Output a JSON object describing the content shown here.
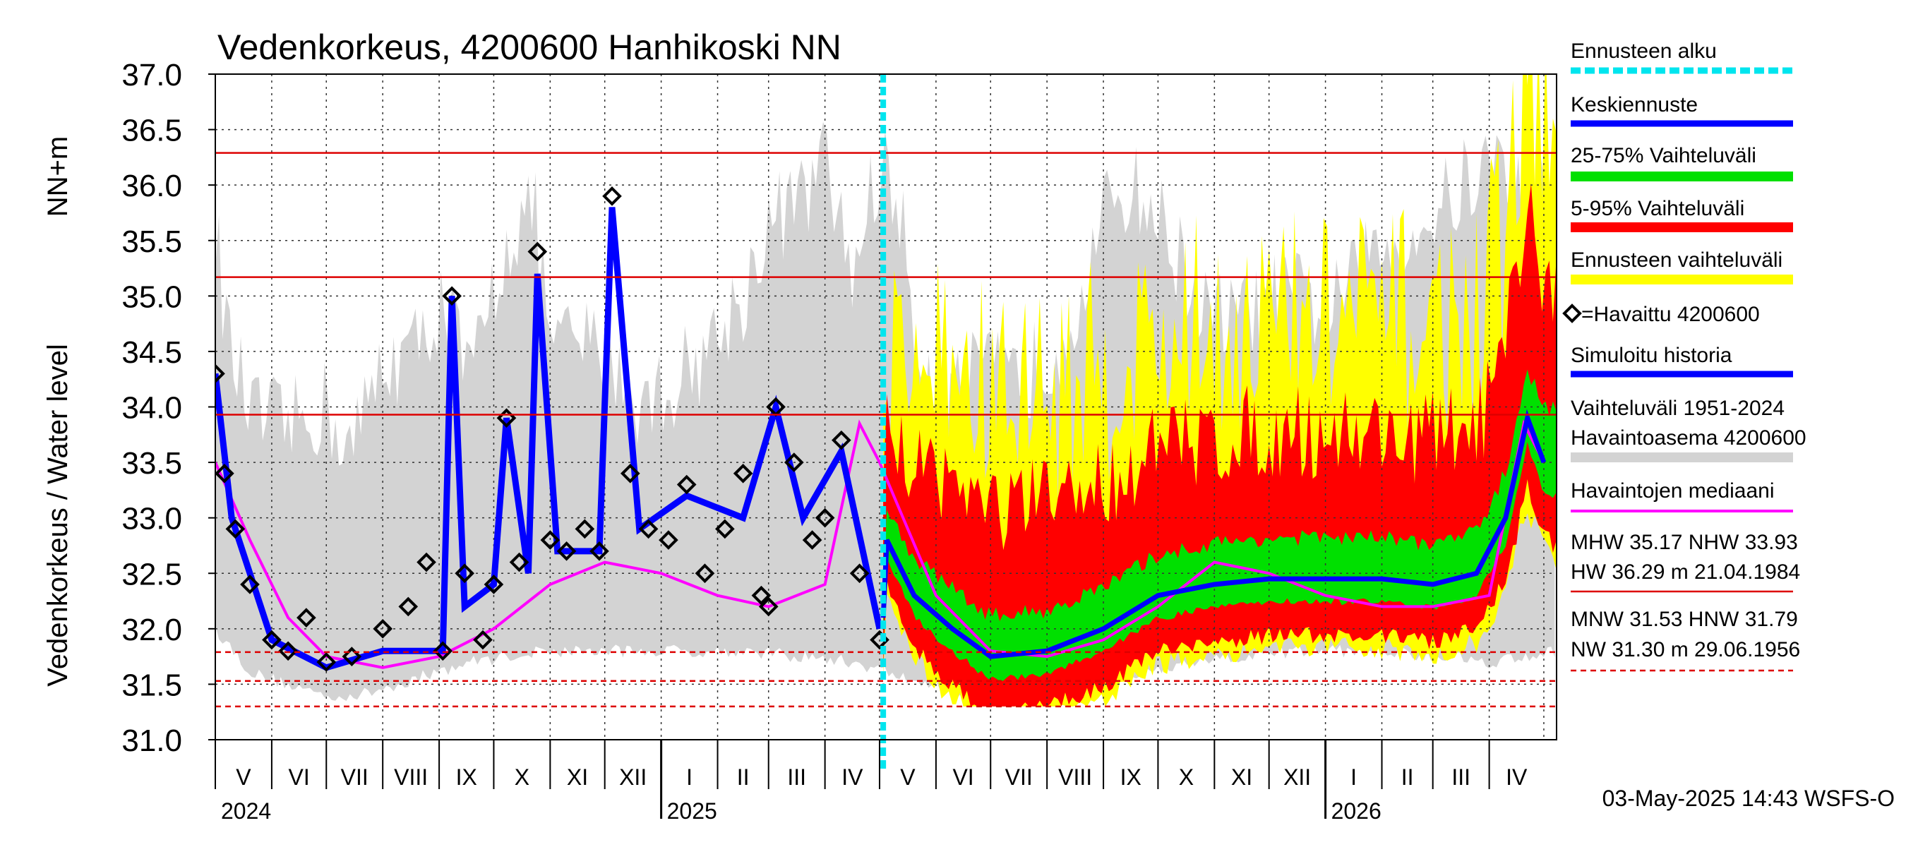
{
  "chart_data": {
    "type": "area",
    "title": "Vedenkorkeus, 4200600 Hanhikoski NN",
    "ylabel_left": "Vedenkorkeus / Water level",
    "ylabel_right": "NN+m",
    "ylim": [
      31.0,
      37.0
    ],
    "yticks": [
      "31.0",
      "31.5",
      "32.0",
      "32.5",
      "33.0",
      "33.5",
      "34.0",
      "34.5",
      "35.0",
      "35.5",
      "36.0",
      "36.5",
      "37.0"
    ],
    "grid": true,
    "months": [
      "V",
      "VI",
      "VII",
      "VIII",
      "IX",
      "X",
      "XI",
      "XII",
      "I",
      "II",
      "III",
      "IV",
      "V",
      "VI",
      "VII",
      "VIII",
      "IX",
      "X",
      "XI",
      "XII",
      "I",
      "II",
      "III",
      "IV"
    ],
    "years": [
      "2024",
      "2025",
      "2026"
    ],
    "forecast_start": "2025-05-03",
    "reference_lines": [
      {
        "name": "HW",
        "value": 36.29,
        "style": "solid"
      },
      {
        "name": "MHW",
        "value": 35.17,
        "style": "solid"
      },
      {
        "name": "NHW",
        "value": 33.93,
        "style": "solid"
      },
      {
        "name": "HNW",
        "value": 31.79,
        "style": "dashed"
      },
      {
        "name": "MNW",
        "value": 31.53,
        "style": "dashed"
      },
      {
        "name": "NW",
        "value": 31.3,
        "style": "dashed"
      }
    ],
    "series": [
      {
        "name": "Havaittu 4200600",
        "color": "#000000",
        "x": [
          "2024-05-01",
          "2024-05-06",
          "2024-05-12",
          "2024-05-20",
          "2024-06-01",
          "2024-06-10",
          "2024-06-20",
          "2024-07-01",
          "2024-07-15",
          "2024-08-01",
          "2024-08-15",
          "2024-08-25",
          "2024-09-03",
          "2024-09-08",
          "2024-09-15",
          "2024-09-25",
          "2024-10-01",
          "2024-10-08",
          "2024-10-15",
          "2024-10-25",
          "2024-11-01",
          "2024-11-10",
          "2024-11-20",
          "2024-11-28",
          "2024-12-05",
          "2024-12-15",
          "2024-12-25",
          "2025-01-05",
          "2025-01-15",
          "2025-01-25",
          "2025-02-05",
          "2025-02-15",
          "2025-02-25",
          "2025-03-01",
          "2025-03-05",
          "2025-03-15",
          "2025-03-25",
          "2025-04-01",
          "2025-04-10",
          "2025-04-20",
          "2025-05-01"
        ],
        "y": [
          34.3,
          33.4,
          32.9,
          32.4,
          31.9,
          31.8,
          32.1,
          31.7,
          31.75,
          32.0,
          32.2,
          32.6,
          31.8,
          35.0,
          32.5,
          31.9,
          32.4,
          33.9,
          32.6,
          35.4,
          32.8,
          32.7,
          32.9,
          32.7,
          35.9,
          33.4,
          32.9,
          32.8,
          33.3,
          32.5,
          32.9,
          33.4,
          32.3,
          32.2,
          34.0,
          33.5,
          32.8,
          33.0,
          33.7,
          32.5,
          31.9
        ]
      },
      {
        "name": "Simuloitu historia",
        "color": "#0000ff",
        "x": [
          "2024-05-01",
          "2024-05-10",
          "2024-06-01",
          "2024-07-01",
          "2024-08-01",
          "2024-09-03",
          "2024-09-08",
          "2024-09-15",
          "2024-10-01",
          "2024-10-08",
          "2024-10-20",
          "2024-10-25",
          "2024-11-05",
          "2024-11-28",
          "2024-12-05",
          "2024-12-20",
          "2025-01-15",
          "2025-02-15",
          "2025-03-05",
          "2025-03-20",
          "2025-04-10",
          "2025-05-01"
        ],
        "y": [
          34.3,
          33.0,
          31.9,
          31.65,
          31.8,
          31.8,
          35.0,
          32.2,
          32.4,
          33.9,
          32.5,
          35.2,
          32.7,
          32.7,
          35.8,
          32.9,
          33.2,
          33.0,
          34.0,
          33.0,
          33.6,
          32.0
        ]
      },
      {
        "name": "Havaintojen mediaani",
        "color": "#ff00ff",
        "x": [
          "2024-05-01",
          "2024-05-20",
          "2024-06-10",
          "2024-07-01",
          "2024-08-01",
          "2024-09-01",
          "2024-10-01",
          "2024-11-01",
          "2024-12-01",
          "2025-01-01",
          "2025-02-01",
          "2025-03-01",
          "2025-04-01",
          "2025-04-20",
          "2025-05-01",
          "2025-06-01",
          "2025-07-01",
          "2025-08-01",
          "2025-09-01",
          "2025-10-01",
          "2025-11-01",
          "2025-12-01",
          "2026-01-01",
          "2026-02-01",
          "2026-03-01",
          "2026-04-01",
          "2026-04-20",
          "2026-05-01"
        ],
        "y": [
          33.5,
          32.8,
          32.1,
          31.75,
          31.65,
          31.75,
          32.0,
          32.4,
          32.6,
          32.5,
          32.3,
          32.2,
          32.4,
          33.85,
          33.5,
          32.3,
          31.8,
          31.75,
          31.9,
          32.2,
          32.6,
          32.5,
          32.3,
          32.2,
          32.2,
          32.3,
          33.85,
          33.5
        ]
      },
      {
        "name": "Keskiennuste",
        "color": "#0000ff",
        "x": [
          "2025-05-03",
          "2025-05-05",
          "2025-05-20",
          "2025-06-10",
          "2025-07-01",
          "2025-08-01",
          "2025-09-01",
          "2025-10-01",
          "2025-11-01",
          "2025-12-01",
          "2026-01-01",
          "2026-02-01",
          "2026-03-01",
          "2026-03-25",
          "2026-04-10",
          "2026-04-22",
          "2026-05-01"
        ],
        "y": [
          32.1,
          32.8,
          32.3,
          32.0,
          31.75,
          31.8,
          32.0,
          32.3,
          32.4,
          32.45,
          32.45,
          32.45,
          32.4,
          32.5,
          33.0,
          33.9,
          33.5
        ]
      }
    ],
    "bands": [
      {
        "name": "Vaihteluväli 1951-2024",
        "color": "#d3d3d3"
      },
      {
        "name": "Ennusteen vaihteluväli",
        "color": "#ffff00"
      },
      {
        "name": "5-95% Vaihteluväli",
        "color": "#ff0000"
      },
      {
        "name": "25-75% Vaihteluväli",
        "color": "#00e000"
      }
    ]
  },
  "legend": {
    "forecast_start": "Ennusteen alku",
    "mean_forecast": "Keskiennuste",
    "range_25_75": "25-75% Vaihteluväli",
    "range_5_95": "5-95% Vaihteluväli",
    "forecast_range": "Ennusteen vaihteluväli",
    "observed": "=Havaittu 4200600",
    "simulated": "Simuloitu historia",
    "hist_range_line1": "Vaihteluväli 1951-2024",
    "hist_range_line2": " Havaintoasema 4200600",
    "median": "Havaintojen mediaani",
    "stats1": "MHW  35.17 NHW  33.93",
    "stats2": "HW  36.29 m 21.04.1984",
    "stats3": "MNW  31.53 HNW  31.79",
    "stats4": "NW  31.30 m 29.06.1956"
  },
  "footer": "03-May-2025 14:43 WSFS-O",
  "colors": {
    "gray": "#d3d3d3",
    "yellow": "#ffff00",
    "red": "#ff0000",
    "green": "#00e000",
    "blue": "#0000ff",
    "magenta": "#ff00ff",
    "cyan": "#00e5ee",
    "refline": "#dd0000"
  }
}
